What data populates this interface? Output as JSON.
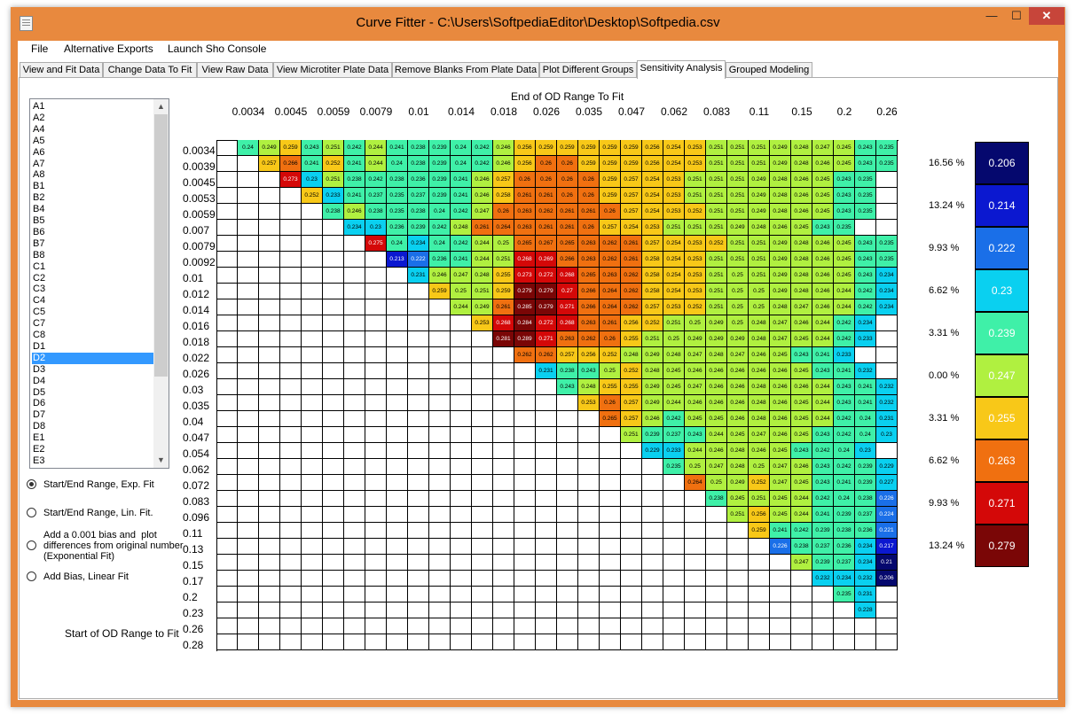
{
  "window": {
    "title": "Curve Fitter - C:\\Users\\SoftpediaEditor\\Desktop\\Softpedia.csv",
    "close_glyph": "✕",
    "min_glyph": "—",
    "max_glyph": "☐"
  },
  "menu": [
    "File",
    "Alternative Exports",
    "Launch Sho Console"
  ],
  "tabs": [
    "View and Fit Data",
    "Change Data To Fit",
    "View Raw Data",
    "View Microtiter Plate Data",
    "Remove Blanks From Plate Data",
    "Plot Different Groups",
    "Sensitivity Analysis",
    "Grouped Modeling"
  ],
  "active_tab": "Sensitivity Analysis",
  "wells": {
    "items": [
      "A1",
      "A2",
      "A4",
      "A5",
      "A6",
      "A7",
      "A8",
      "B1",
      "B2",
      "B4",
      "B5",
      "B6",
      "B7",
      "B8",
      "C1",
      "C2",
      "C3",
      "C4",
      "C5",
      "C7",
      "C8",
      "D1",
      "D2",
      "D3",
      "D4",
      "D5",
      "D6",
      "D7",
      "D8",
      "E1",
      "E2",
      "E3"
    ],
    "selected": "D2"
  },
  "options": [
    {
      "label": "Start/End Range, Exp. Fit",
      "checked": true
    },
    {
      "label": "Start/End Range, Lin. Fit.",
      "checked": false
    },
    {
      "label": "Add a 0.001 bias and  plot\ndifferences from original number\n(Exponential Fit)",
      "checked": false
    },
    {
      "label": "Add Bias, Linear Fit",
      "checked": false
    }
  ],
  "heatmap": {
    "x_title": "End of OD Range To Fit",
    "y_title": "Start of OD Range to Fit",
    "col_ticks": [
      "0.0034",
      "0.0045",
      "0.0059",
      "0.0079",
      "0.01",
      "0.014",
      "0.018",
      "0.026",
      "0.035",
      "0.047",
      "0.062",
      "0.083",
      "0.11",
      "0.15",
      "0.2",
      "0.26"
    ],
    "row_ticks": [
      "0.0034",
      "0.0039",
      "0.0045",
      "0.0053",
      "0.0059",
      "0.007",
      "0.0079",
      "0.0092",
      "0.01",
      "0.012",
      "0.014",
      "0.016",
      "0.018",
      "0.022",
      "0.026",
      "0.03",
      "0.035",
      "0.04",
      "0.047",
      "0.054",
      "0.062",
      "0.072",
      "0.083",
      "0.096",
      "0.11",
      "0.13",
      "0.15",
      "0.17",
      "0.2",
      "0.23",
      "0.26",
      "0.28"
    ],
    "rows": [
      [
        0.24,
        0.249,
        0.259,
        0.243,
        0.251,
        0.242,
        0.244,
        0.241,
        0.238,
        0.239,
        0.24,
        0.242,
        0.246,
        0.256,
        0.259,
        0.259,
        0.259,
        0.259,
        0.259,
        0.256,
        0.254,
        0.253,
        0.251,
        0.251,
        0.251,
        0.249,
        0.248,
        0.247,
        0.245,
        0.243,
        0.235
      ],
      [
        0.257,
        0.266,
        0.241,
        0.252,
        0.241,
        0.244,
        0.24,
        0.238,
        0.239,
        0.24,
        0.242,
        0.246,
        0.256,
        0.26,
        0.26,
        0.259,
        0.259,
        0.259,
        0.256,
        0.254,
        0.253,
        0.251,
        0.251,
        0.251,
        0.249,
        0.248,
        0.246,
        0.245,
        0.243,
        0.235
      ],
      [
        0.273,
        0.23,
        0.251,
        0.238,
        0.242,
        0.238,
        0.236,
        0.239,
        0.241,
        0.246,
        0.257,
        0.26,
        0.26,
        0.26,
        0.26,
        0.259,
        0.257,
        0.254,
        0.253,
        0.251,
        0.251,
        0.251,
        0.249,
        0.248,
        0.246,
        0.245,
        0.243,
        0.235
      ],
      [
        0.252,
        0.233,
        0.241,
        0.237,
        0.235,
        0.237,
        0.239,
        0.241,
        0.246,
        0.258,
        0.261,
        0.261,
        0.26,
        0.26,
        0.259,
        0.257,
        0.254,
        0.253,
        0.251,
        0.251,
        0.251,
        0.249,
        0.248,
        0.246,
        0.245,
        0.243,
        0.235
      ],
      [
        0.238,
        0.246,
        0.238,
        0.235,
        0.238,
        0.24,
        0.242,
        0.247,
        0.26,
        0.263,
        0.262,
        0.261,
        0.261,
        0.26,
        0.257,
        0.254,
        0.253,
        0.252,
        0.251,
        0.251,
        0.249,
        0.248,
        0.246,
        0.245,
        0.243,
        0.235
      ],
      [
        0.234,
        0.23,
        0.236,
        0.239,
        0.242,
        0.248,
        0.261,
        0.264,
        0.263,
        0.261,
        0.261,
        0.26,
        0.257,
        0.254,
        0.253,
        0.251,
        0.251,
        0.251,
        0.249,
        0.248,
        0.246,
        0.245,
        0.243,
        0.235
      ],
      [
        0.275,
        0.24,
        0.234,
        0.24,
        0.242,
        0.244,
        0.25,
        0.265,
        0.267,
        0.265,
        0.263,
        0.262,
        0.261,
        0.257,
        0.254,
        0.253,
        0.252,
        0.251,
        0.251,
        0.249,
        0.248,
        0.246,
        0.245,
        0.243,
        0.235
      ],
      [
        0.213,
        0.222,
        0.236,
        0.241,
        0.244,
        0.251,
        0.268,
        0.269,
        0.266,
        0.263,
        0.262,
        0.261,
        0.258,
        0.254,
        0.253,
        0.251,
        0.251,
        0.251,
        0.249,
        0.248,
        0.246,
        0.245,
        0.243,
        0.235
      ],
      [
        0.231,
        0.246,
        0.247,
        0.248,
        0.255,
        0.273,
        0.272,
        0.268,
        0.265,
        0.263,
        0.262,
        0.258,
        0.254,
        0.253,
        0.251,
        0.25,
        0.251,
        0.249,
        0.248,
        0.246,
        0.245,
        0.243,
        0.234
      ],
      [
        0.259,
        0.25,
        0.251,
        0.259,
        0.279,
        0.279,
        0.27,
        0.266,
        0.264,
        0.262,
        0.258,
        0.254,
        0.253,
        0.251,
        0.25,
        0.25,
        0.249,
        0.248,
        0.246,
        0.244,
        0.242,
        0.234
      ],
      [
        0.244,
        0.249,
        0.261,
        0.285,
        0.279,
        0.271,
        0.266,
        0.264,
        0.262,
        0.257,
        0.253,
        0.252,
        0.251,
        0.25,
        0.25,
        0.248,
        0.247,
        0.246,
        0.244,
        0.242,
        0.234
      ],
      [
        0.253,
        0.268,
        0.284,
        0.272,
        0.268,
        0.263,
        0.261,
        0.256,
        0.252,
        0.251,
        0.25,
        0.249,
        0.25,
        0.248,
        0.247,
        0.246,
        0.244,
        0.242,
        0.234
      ],
      [
        0.281,
        0.289,
        0.271,
        0.263,
        0.262,
        0.26,
        0.255,
        0.251,
        0.25,
        0.249,
        0.249,
        0.249,
        0.248,
        0.247,
        0.245,
        0.244,
        0.242,
        0.233
      ],
      [
        0.262,
        0.262,
        0.257,
        0.256,
        0.252,
        0.248,
        0.249,
        0.248,
        0.247,
        0.248,
        0.247,
        0.246,
        0.245,
        0.243,
        0.241,
        0.233
      ],
      [
        0.231,
        0.238,
        0.243,
        0.25,
        0.252,
        0.248,
        0.245,
        0.246,
        0.246,
        0.246,
        0.246,
        0.246,
        0.245,
        0.243,
        0.241,
        0.232
      ],
      [
        0.243,
        0.248,
        0.255,
        0.255,
        0.249,
        0.245,
        0.247,
        0.246,
        0.246,
        0.248,
        0.246,
        0.246,
        0.244,
        0.243,
        0.241,
        0.232
      ],
      [
        0.253,
        0.26,
        0.257,
        0.249,
        0.244,
        0.246,
        0.246,
        0.246,
        0.248,
        0.246,
        0.245,
        0.244,
        0.243,
        0.241,
        0.232
      ],
      [
        0.265,
        0.257,
        0.246,
        0.242,
        0.245,
        0.245,
        0.246,
        0.248,
        0.246,
        0.245,
        0.244,
        0.242,
        0.24,
        0.231
      ],
      [
        0.251,
        0.239,
        0.237,
        0.243,
        0.244,
        0.245,
        0.247,
        0.246,
        0.245,
        0.243,
        0.242,
        0.24,
        0.23
      ],
      [
        0.229,
        0.233,
        0.244,
        0.246,
        0.248,
        0.246,
        0.245,
        0.243,
        0.242,
        0.24,
        0.23
      ],
      [
        0.235,
        0.25,
        0.247,
        0.248,
        0.25,
        0.247,
        0.246,
        0.243,
        0.242,
        0.239,
        0.229
      ],
      [
        0.264,
        0.25,
        0.249,
        0.252,
        0.247,
        0.245,
        0.243,
        0.241,
        0.239,
        0.227
      ],
      [
        0.238,
        0.245,
        0.251,
        0.245,
        0.244,
        0.242,
        0.24,
        0.238,
        0.226
      ],
      [
        0.251,
        0.256,
        0.245,
        0.244,
        0.241,
        0.239,
        0.237,
        0.224
      ],
      [
        0.259,
        0.241,
        0.242,
        0.239,
        0.238,
        0.236,
        0.221
      ],
      [
        0.226,
        0.238,
        0.237,
        0.236,
        0.234,
        0.217
      ],
      [
        0.247,
        0.239,
        0.237,
        0.234,
        0.21
      ],
      [
        0.232,
        0.234,
        0.232,
        0.206
      ],
      [
        0.235,
        0.231
      ],
      [
        0.228
      ],
      [],
      []
    ],
    "row_start_cols": [
      1,
      2,
      3,
      4,
      5,
      6,
      7,
      8,
      9,
      10,
      11,
      12,
      13,
      14,
      15,
      16,
      17,
      18,
      19,
      20,
      21,
      22,
      23,
      24,
      25,
      26,
      27,
      28,
      29,
      30,
      31,
      32
    ]
  },
  "legend": {
    "values": [
      "0.206",
      "0.214",
      "0.222",
      "0.23",
      "0.239",
      "0.247",
      "0.255",
      "0.263",
      "0.271",
      "0.279"
    ],
    "colors": [
      "#05086e",
      "#0b18d0",
      "#1a6fe8",
      "#0ad0f0",
      "#3ff0a8",
      "#b0f040",
      "#f8c818",
      "#f07010",
      "#d40808",
      "#7a0606"
    ],
    "percents": [
      "16.56 %",
      "13.24 %",
      "9.93 %",
      "6.62 %",
      "3.31 %",
      "0.00 %",
      "3.31 %",
      "6.62 %",
      "9.93 %",
      "13.24 %"
    ]
  }
}
